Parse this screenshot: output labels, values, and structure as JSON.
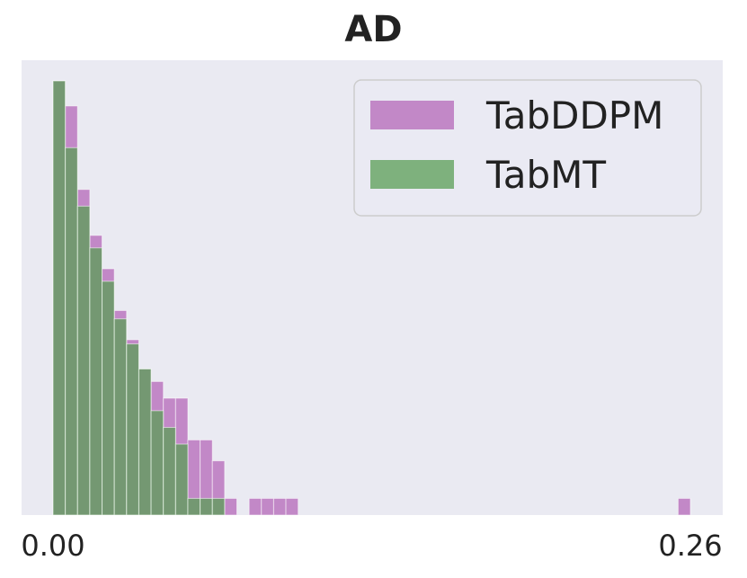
{
  "chart_data": {
    "type": "bar",
    "title": "AD",
    "xlabel": "",
    "ylabel": "",
    "xlim": [
      0.0,
      0.26
    ],
    "x_tick_labels": [
      "0.00",
      "0.26"
    ],
    "x_tick_values": [
      0.0,
      0.26
    ],
    "y_max_count": 104,
    "bin_width": 0.005,
    "grid": false,
    "legend_position": "top-right",
    "series": [
      {
        "name": "TabDDPM",
        "color": "#b467b8",
        "bins": [
          0.0,
          0.005,
          0.01,
          0.015,
          0.02,
          0.025,
          0.03,
          0.035,
          0.04,
          0.045,
          0.05,
          0.055,
          0.06,
          0.065,
          0.07,
          0.08,
          0.085,
          0.09,
          0.095,
          0.255
        ],
        "counts": [
          104,
          98,
          78,
          67,
          59,
          49,
          42,
          35,
          32,
          28,
          28,
          18,
          18,
          13,
          4,
          4,
          4,
          4,
          4,
          4
        ]
      },
      {
        "name": "TabMT",
        "color": "#5a9e55",
        "bins": [
          0.0,
          0.005,
          0.01,
          0.015,
          0.02,
          0.025,
          0.03,
          0.035,
          0.04,
          0.045,
          0.05,
          0.055,
          0.06,
          0.065
        ],
        "counts": [
          104,
          88,
          74,
          64,
          56,
          47,
          41,
          35,
          25,
          21,
          17,
          4,
          4,
          4
        ]
      }
    ]
  }
}
